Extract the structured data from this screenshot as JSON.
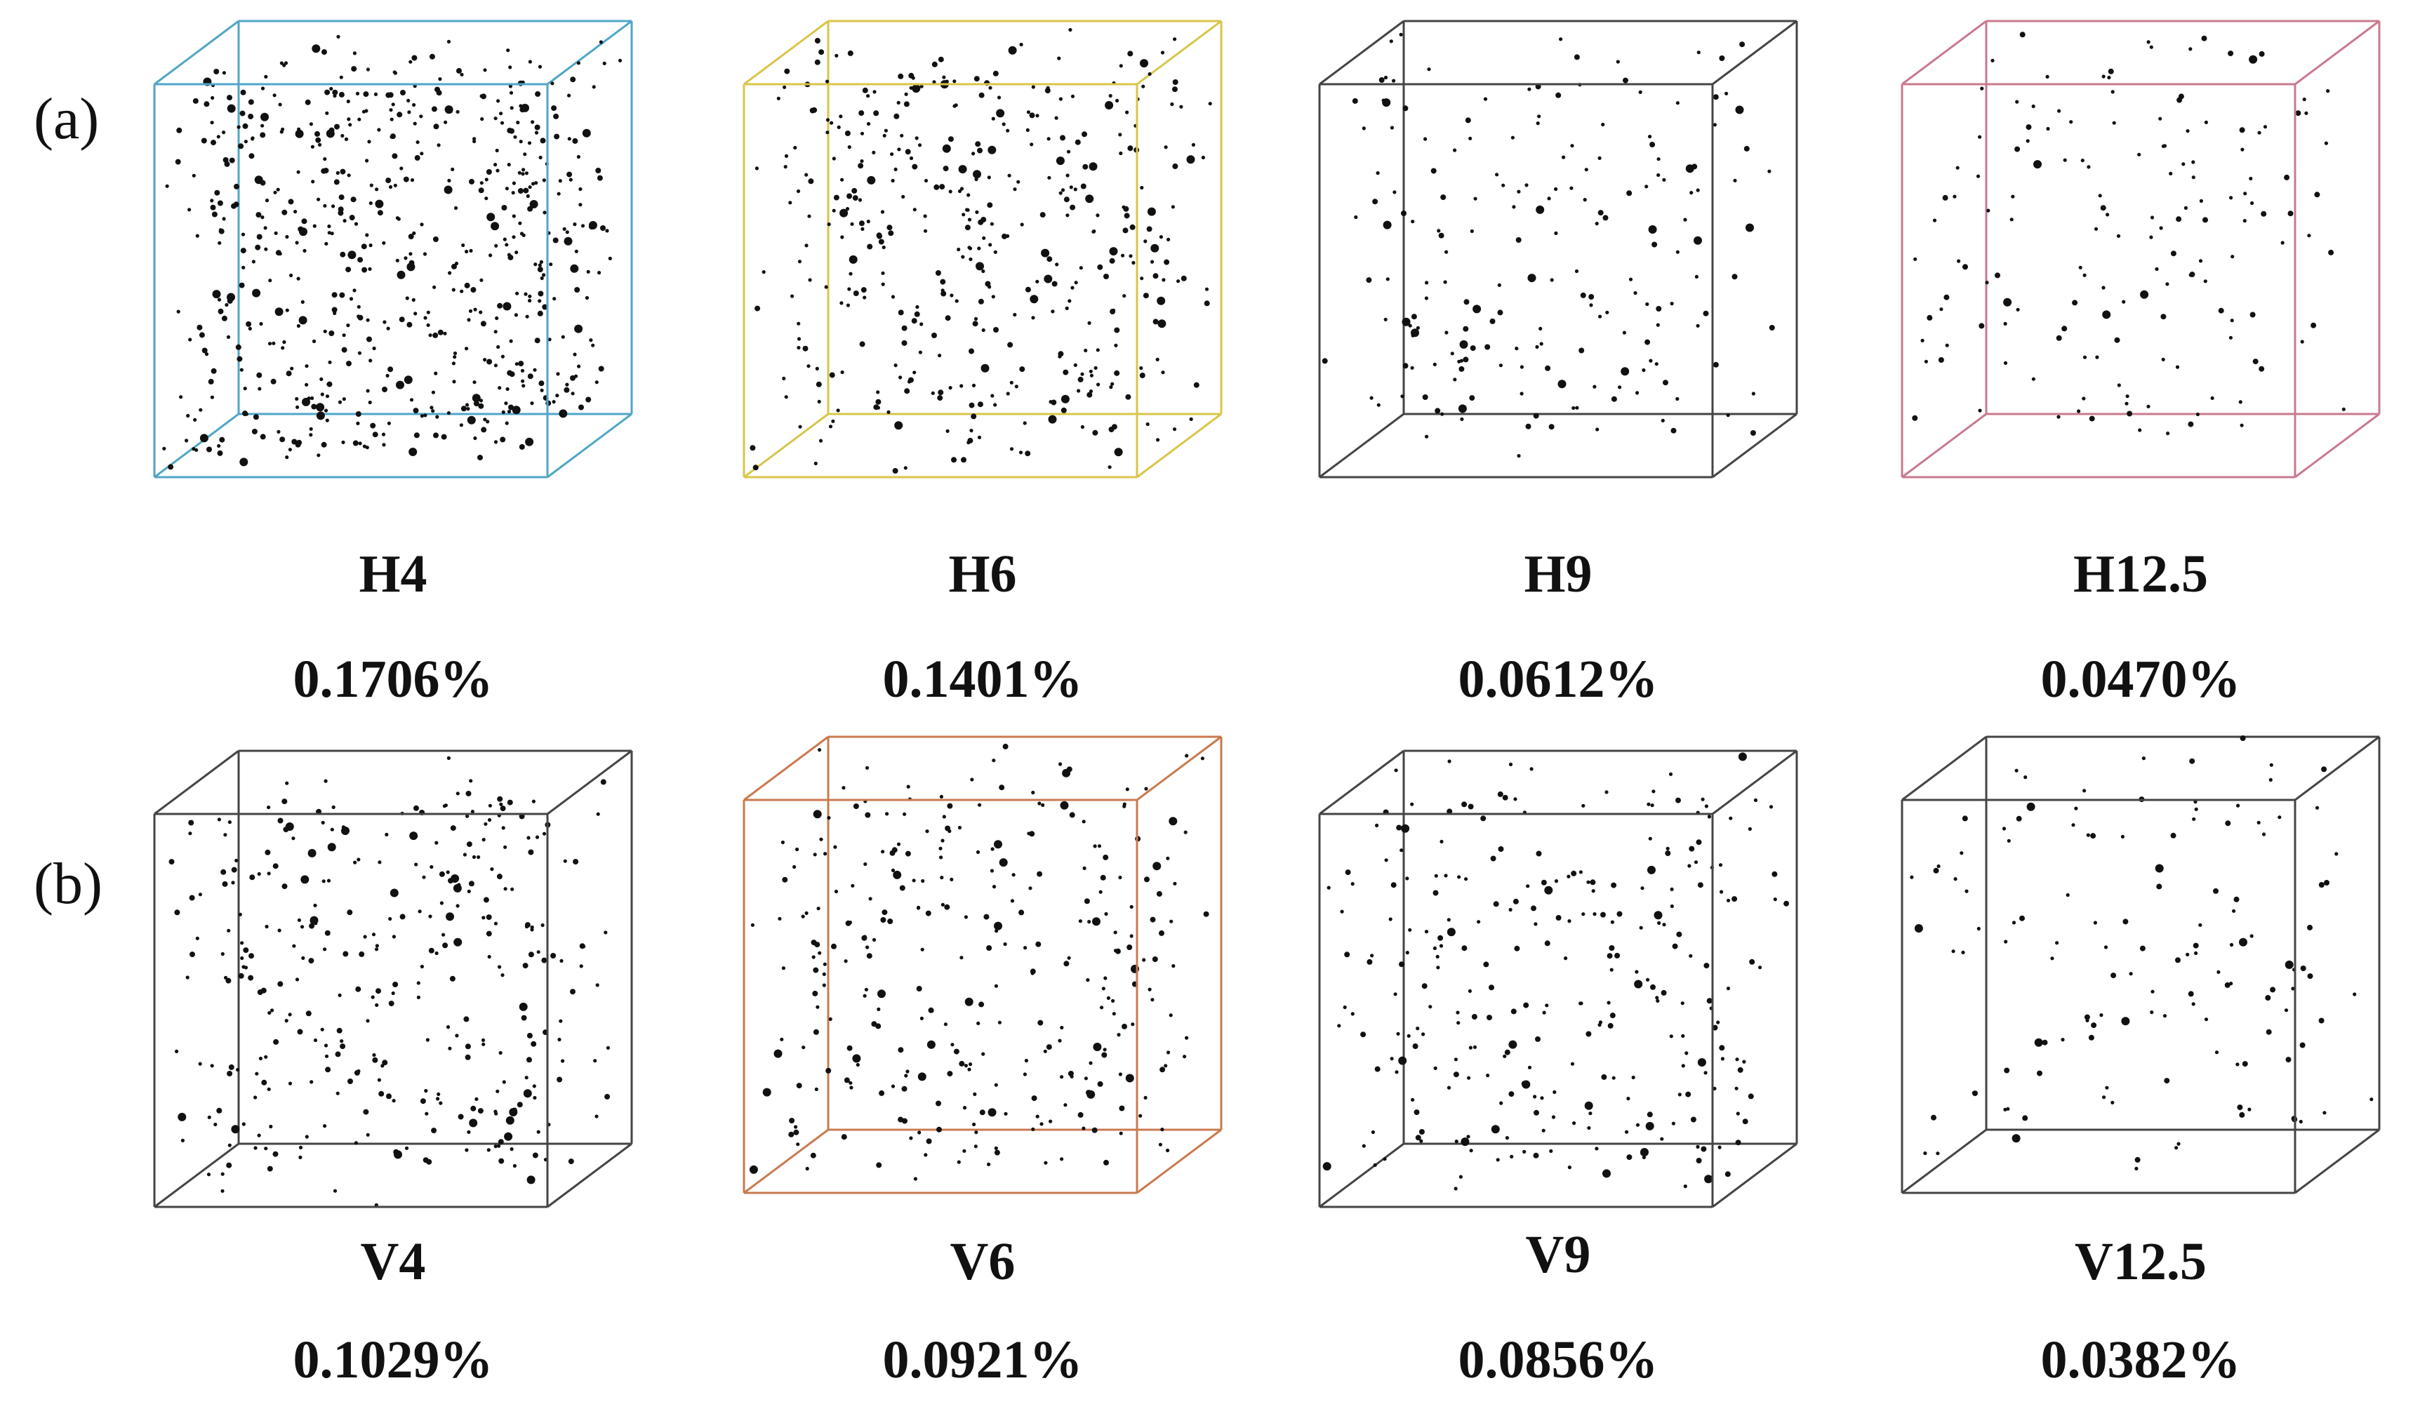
{
  "row_labels": [
    "(a)",
    "(b)"
  ],
  "panels": [
    {
      "name": "H4",
      "value": "0.1706%",
      "edge_color": "#4fa6c8",
      "density": 620
    },
    {
      "name": "H6",
      "value": "0.1401%",
      "edge_color": "#d8c64a",
      "density": 420
    },
    {
      "name": "H9",
      "value": "0.0612%",
      "edge_color": "#444444",
      "density": 190
    },
    {
      "name": "H12.5",
      "value": "0.0470%",
      "edge_color": "#c97a8e",
      "density": 150
    },
    {
      "name": "V4",
      "value": "0.1029%",
      "edge_color": "#444444",
      "density": 330
    },
    {
      "name": "V6",
      "value": "0.0921%",
      "edge_color": "#c97a4f",
      "density": 300
    },
    {
      "name": "V9",
      "value": "0.0856%",
      "edge_color": "#444444",
      "density": 270
    },
    {
      "name": "V12.5",
      "value": "0.0382%",
      "edge_color": "#444444",
      "density": 130
    }
  ]
}
